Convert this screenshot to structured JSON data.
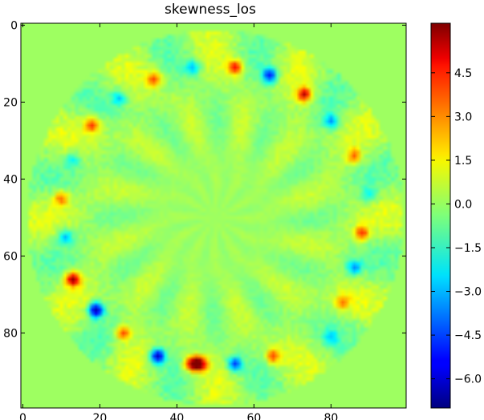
{
  "chart_data": {
    "type": "heatmap",
    "title": "skewness_los",
    "xlabel": "",
    "ylabel": "",
    "xlim": [
      0,
      99
    ],
    "ylim": [
      0,
      99
    ],
    "x_ticks": [
      0,
      20,
      40,
      60,
      80
    ],
    "y_ticks": [
      0,
      20,
      40,
      60,
      80
    ],
    "colormap": "jet",
    "background_value": 0.0,
    "disk": {
      "center": [
        50,
        50
      ],
      "radius": 49
    },
    "color_range": [
      -7.0,
      6.2
    ],
    "colorbar_ticks": [
      4.5,
      3.0,
      1.5,
      0.0,
      -1.5,
      -3.0,
      -4.5,
      -6.0
    ],
    "colorbar_tick_labels": [
      "4.5",
      "3.0",
      "1.5",
      "0.0",
      "−1.5",
      "−3.0",
      "−4.5",
      "−6.0"
    ],
    "hotspots": [
      {
        "x": 13,
        "y": 66,
        "value": 5.8
      },
      {
        "x": 19,
        "y": 74,
        "value": -6.5
      },
      {
        "x": 35,
        "y": 86,
        "value": -6.0
      },
      {
        "x": 44,
        "y": 88,
        "value": 6.0
      },
      {
        "x": 46,
        "y": 88,
        "value": 5.5
      },
      {
        "x": 55,
        "y": 88,
        "value": -4.5
      },
      {
        "x": 65,
        "y": 86,
        "value": 3.5
      },
      {
        "x": 26,
        "y": 80,
        "value": 3.5
      },
      {
        "x": 83,
        "y": 72,
        "value": 2.5
      },
      {
        "x": 80,
        "y": 81,
        "value": -2.0
      },
      {
        "x": 86,
        "y": 63,
        "value": -3.0
      },
      {
        "x": 88,
        "y": 54,
        "value": 3.8
      },
      {
        "x": 90,
        "y": 44,
        "value": -2.0
      },
      {
        "x": 86,
        "y": 34,
        "value": 3.0
      },
      {
        "x": 80,
        "y": 25,
        "value": -3.0
      },
      {
        "x": 73,
        "y": 18,
        "value": 5.0
      },
      {
        "x": 64,
        "y": 13,
        "value": -5.0
      },
      {
        "x": 55,
        "y": 11,
        "value": 4.5
      },
      {
        "x": 44,
        "y": 11,
        "value": -2.5
      },
      {
        "x": 34,
        "y": 14,
        "value": 3.5
      },
      {
        "x": 25,
        "y": 19,
        "value": -2.5
      },
      {
        "x": 18,
        "y": 26,
        "value": 3.8
      },
      {
        "x": 13,
        "y": 35,
        "value": -1.8
      },
      {
        "x": 10,
        "y": 45,
        "value": 3.0
      },
      {
        "x": 11,
        "y": 55,
        "value": -2.8
      }
    ]
  }
}
